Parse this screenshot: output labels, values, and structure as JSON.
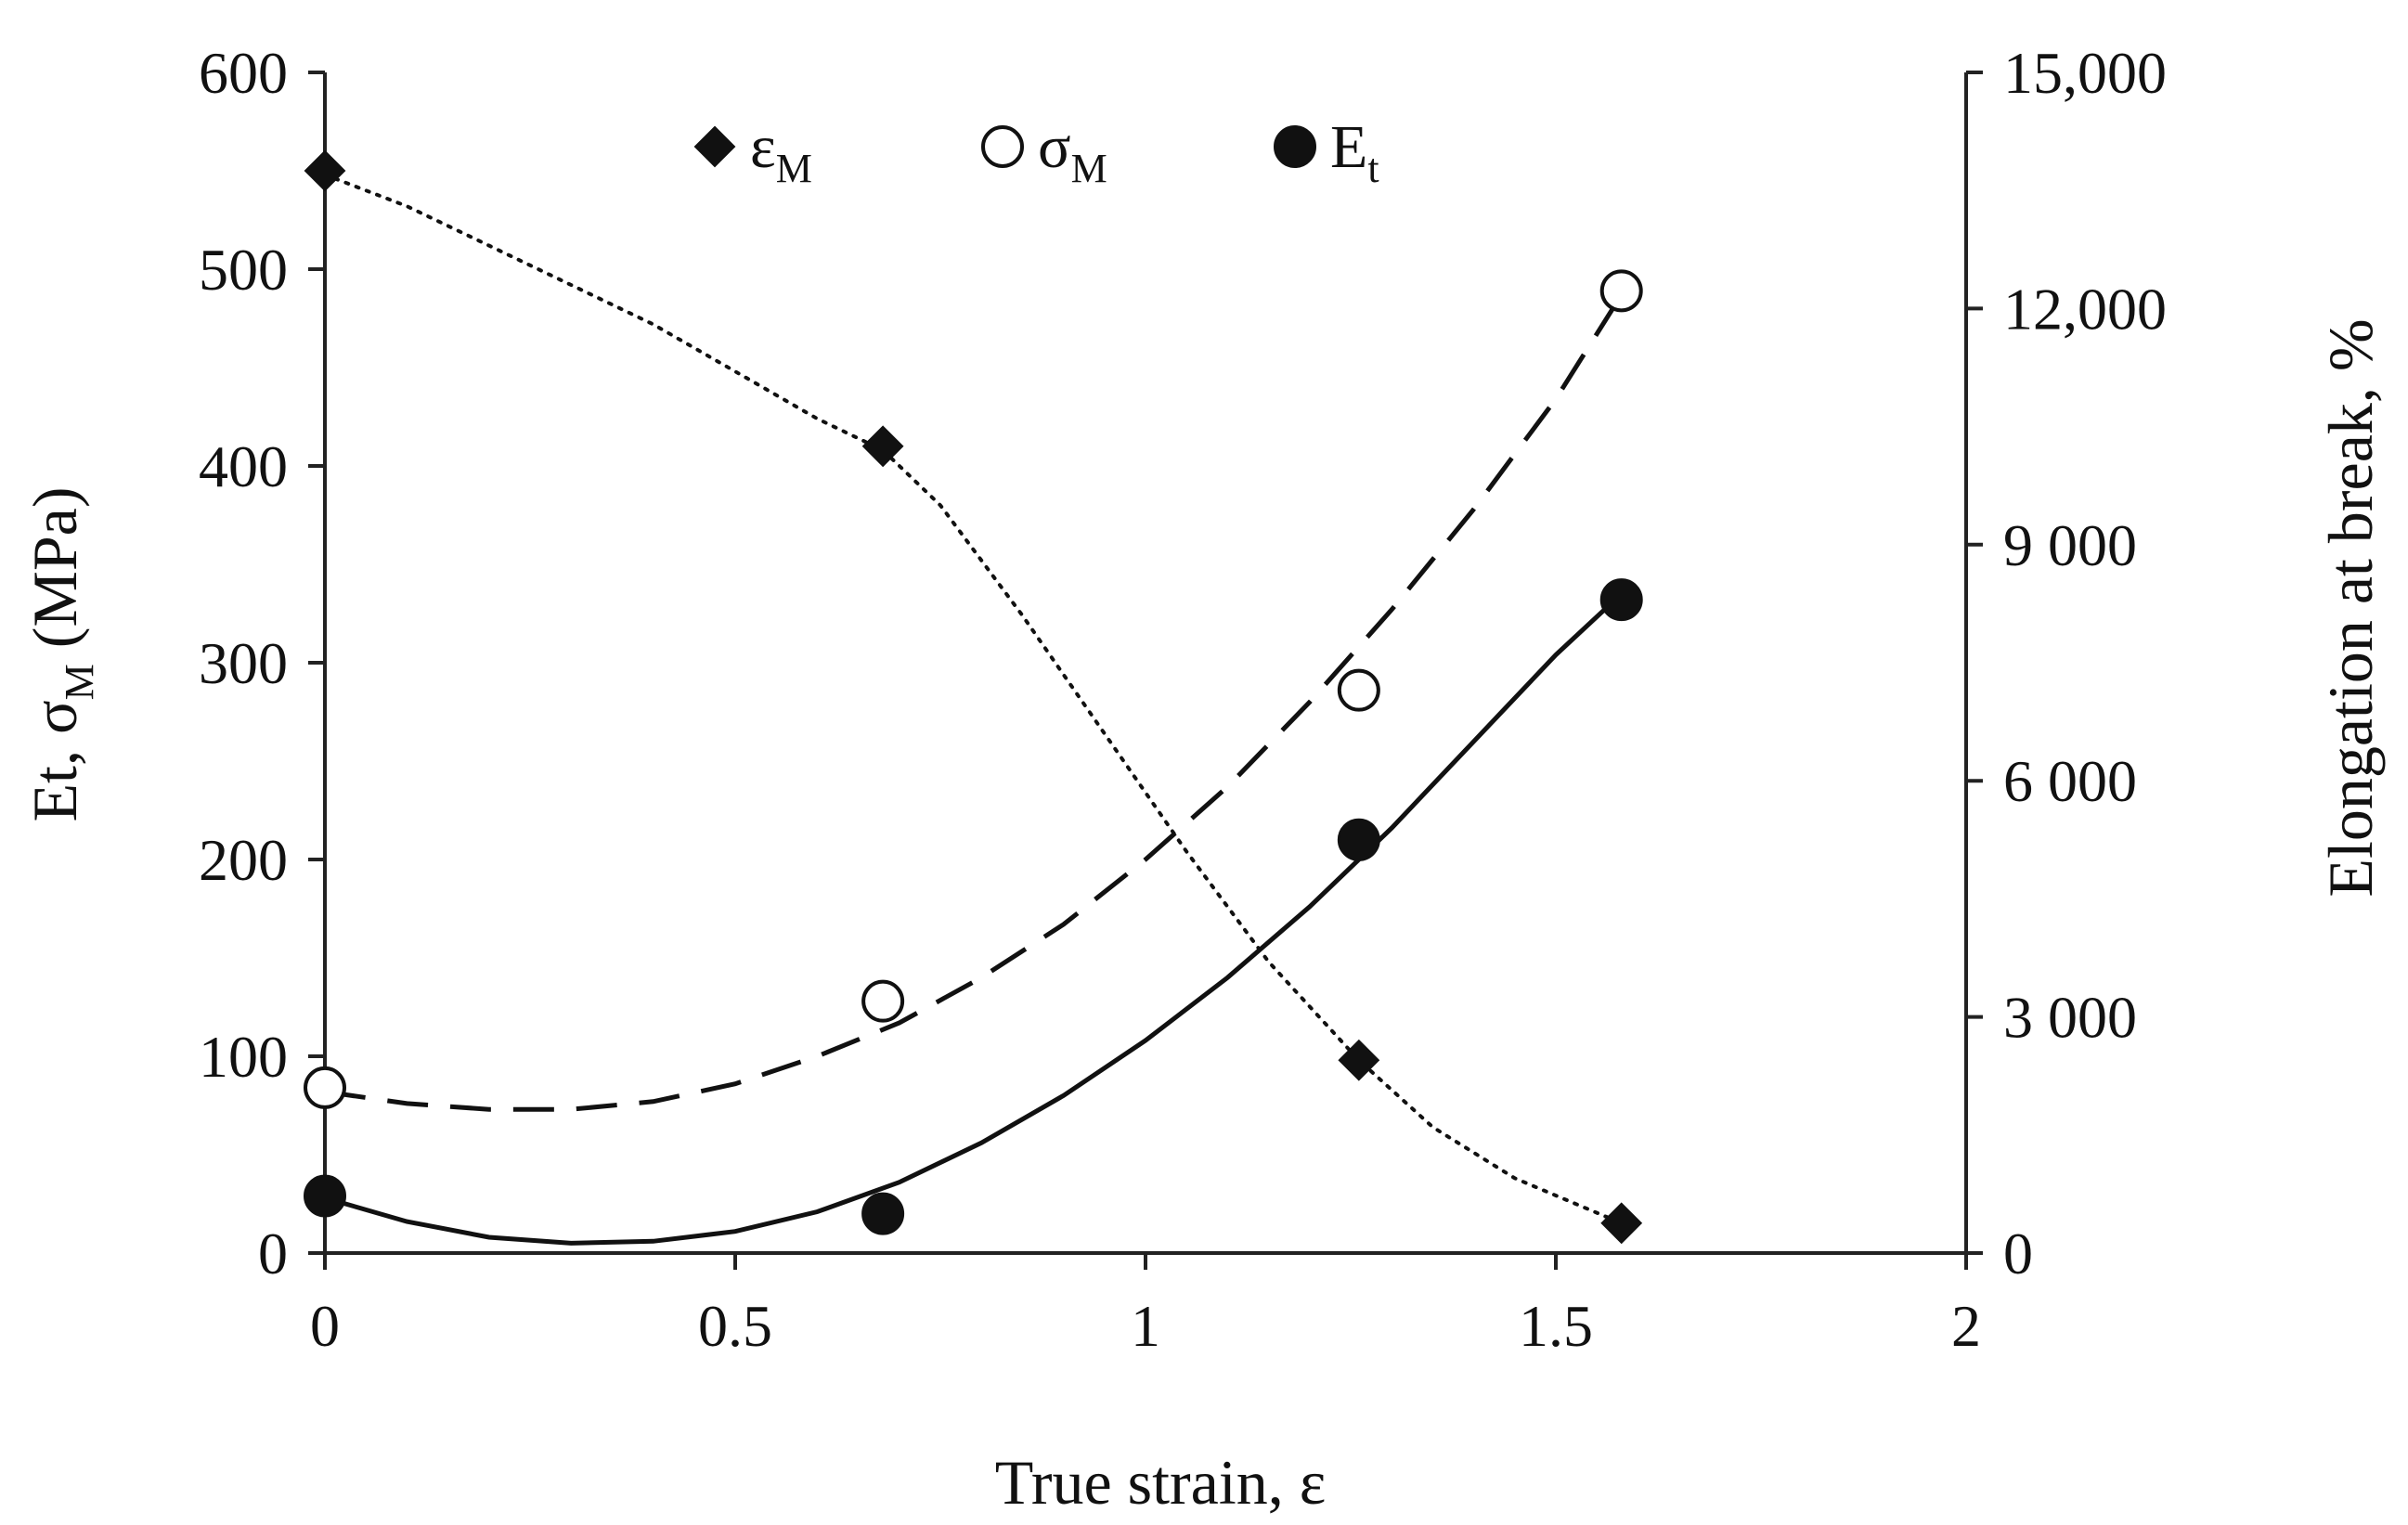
{
  "chart_data": {
    "type": "scatter",
    "title": "",
    "xlabel": "True strain, ε",
    "ylabel_left": {
      "main": "Et, σ",
      "sub": "M",
      "suffix": " (MPa)"
    },
    "ylabel_right": "Elongation at break, %",
    "xlim": [
      0,
      2
    ],
    "ylim_left": [
      0,
      600
    ],
    "ylim_right": [
      0,
      15000
    ],
    "x_ticks": [
      "0",
      "0.5",
      "1",
      "1.5",
      "2"
    ],
    "x_tick_values": [
      0,
      0.5,
      1,
      1.5,
      2
    ],
    "y_left_ticks": [
      "0",
      "100",
      "200",
      "300",
      "400",
      "500",
      "600"
    ],
    "y_left_tick_values": [
      0,
      100,
      200,
      300,
      400,
      500,
      600
    ],
    "y_right_ticks": [
      "0",
      "3 000",
      "6 000",
      "9 000",
      "12,000",
      "15,000"
    ],
    "y_right_tick_values": [
      0,
      3000,
      6000,
      9000,
      12000,
      15000
    ],
    "grid": false,
    "legend_position": "top",
    "legend": [
      {
        "base": "ε",
        "sub": "M",
        "marker": "diamond-filled"
      },
      {
        "base": "σ",
        "sub": "M",
        "marker": "circle-open"
      },
      {
        "base": "E",
        "sub": "t",
        "marker": "circle-filled"
      }
    ],
    "series": [
      {
        "name": "εM",
        "axis": "right",
        "marker": "diamond-filled",
        "line_style": "dotted",
        "x": [
          0,
          0.68,
          1.26,
          1.58
        ],
        "y": [
          13750,
          10250,
          2450,
          380
        ],
        "curve": [
          [
            0,
            13700
          ],
          [
            0.1,
            13300
          ],
          [
            0.2,
            12800
          ],
          [
            0.3,
            12300
          ],
          [
            0.4,
            11800
          ],
          [
            0.5,
            11200
          ],
          [
            0.6,
            10600
          ],
          [
            0.68,
            10200
          ],
          [
            0.75,
            9500
          ],
          [
            0.85,
            8100
          ],
          [
            0.95,
            6600
          ],
          [
            1.05,
            5100
          ],
          [
            1.15,
            3700
          ],
          [
            1.26,
            2450
          ],
          [
            1.35,
            1600
          ],
          [
            1.45,
            950
          ],
          [
            1.58,
            380
          ]
        ]
      },
      {
        "name": "σM",
        "axis": "left",
        "marker": "circle-open",
        "line_style": "dashed",
        "x": [
          0,
          0.68,
          1.26,
          1.58
        ],
        "y": [
          84,
          128,
          286,
          489
        ],
        "curve": [
          [
            0,
            82
          ],
          [
            0.1,
            76
          ],
          [
            0.2,
            73
          ],
          [
            0.3,
            73
          ],
          [
            0.4,
            77
          ],
          [
            0.5,
            86
          ],
          [
            0.6,
            100
          ],
          [
            0.7,
            117
          ],
          [
            0.8,
            140
          ],
          [
            0.9,
            167
          ],
          [
            1.0,
            200
          ],
          [
            1.1,
            237
          ],
          [
            1.2,
            280
          ],
          [
            1.3,
            327
          ],
          [
            1.4,
            378
          ],
          [
            1.5,
            434
          ],
          [
            1.58,
            487
          ]
        ]
      },
      {
        "name": "Et",
        "axis": "left",
        "marker": "circle-filled",
        "line_style": "solid",
        "x": [
          0,
          0.68,
          1.26,
          1.58
        ],
        "y": [
          29,
          20,
          210,
          332
        ],
        "curve": [
          [
            0,
            28
          ],
          [
            0.1,
            16
          ],
          [
            0.2,
            8
          ],
          [
            0.3,
            5
          ],
          [
            0.4,
            6
          ],
          [
            0.5,
            11
          ],
          [
            0.6,
            21
          ],
          [
            0.7,
            36
          ],
          [
            0.8,
            56
          ],
          [
            0.9,
            80
          ],
          [
            1.0,
            108
          ],
          [
            1.1,
            140
          ],
          [
            1.2,
            176
          ],
          [
            1.3,
            216
          ],
          [
            1.4,
            260
          ],
          [
            1.5,
            304
          ],
          [
            1.58,
            335
          ]
        ]
      }
    ]
  }
}
